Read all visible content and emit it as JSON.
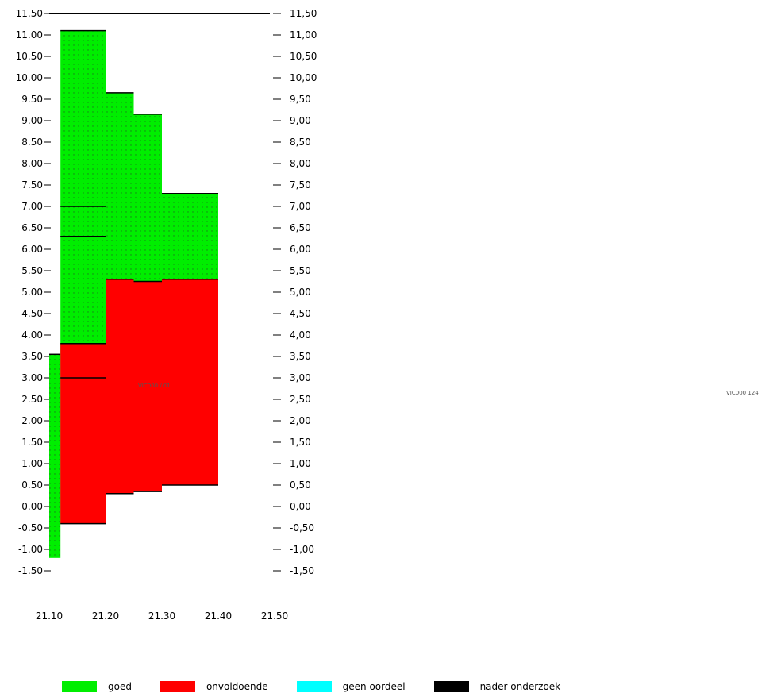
{
  "chart_data": {
    "type": "area",
    "title": "",
    "xlabel": "",
    "ylabel": "",
    "xlim": [
      21.06,
      21.5
    ],
    "ylim": [
      -1.5,
      11.5
    ],
    "x_ticks": [
      "21.10",
      "21.20",
      "21.30",
      "21.40",
      "21.50"
    ],
    "y_ticks_left": [
      "11.50",
      "11.00",
      "10.50",
      "10.00",
      "9.50",
      "9.00",
      "8.50",
      "8.00",
      "7.50",
      "7.00",
      "6.50",
      "6.00",
      "5.50",
      "5.00",
      "4.50",
      "4.00",
      "3.50",
      "3.00",
      "2.50",
      "2.00",
      "1.50",
      "1.00",
      "0.50",
      "0.00",
      "-0.50",
      "-1.00",
      "-1.50"
    ],
    "y_ticks_right": [
      "11,50",
      "11,00",
      "10,50",
      "10,00",
      "9,50",
      "9,00",
      "8,50",
      "8,00",
      "7,50",
      "7,00",
      "6,50",
      "6,00",
      "5,50",
      "5,00",
      "4,50",
      "4,00",
      "3,50",
      "3,00",
      "2,50",
      "2,00",
      "1,50",
      "1,00",
      "0,50",
      "0,00",
      "-0,50",
      "-1,00",
      "-1,50"
    ],
    "center_label": "VIC000 / 01",
    "side_label": "VIC000 124",
    "segments": [
      {
        "x0": 21.1,
        "x1": 21.12,
        "bottom": -1.2,
        "red_bottom": null,
        "red_top": null,
        "top": 3.55,
        "lines": []
      },
      {
        "x0": 21.12,
        "x1": 21.2,
        "bottom": -0.4,
        "red_bottom": -0.4,
        "red_top": 3.8,
        "top": 11.1,
        "lines": [
          3.0,
          6.3,
          7.0
        ]
      },
      {
        "x0": 21.2,
        "x1": 21.25,
        "bottom": 0.3,
        "red_bottom": 0.3,
        "red_top": 5.3,
        "top": 9.65,
        "lines": []
      },
      {
        "x0": 21.25,
        "x1": 21.3,
        "bottom": 0.35,
        "red_bottom": 0.35,
        "red_top": 5.25,
        "top": 9.15,
        "lines": []
      },
      {
        "x0": 21.3,
        "x1": 21.4,
        "bottom": 0.5,
        "red_bottom": 0.5,
        "red_top": 5.3,
        "top": 7.3,
        "lines": []
      }
    ],
    "legend": [
      {
        "name": "goed",
        "color": "#00ee00"
      },
      {
        "name": "onvoldoende",
        "color": "#ff0000"
      },
      {
        "name": "geen oordeel",
        "color": "#00ffff"
      },
      {
        "name": "nader onderzoek",
        "color": "#000000"
      }
    ],
    "colors": {
      "good": "#00ee00",
      "bad": "#ff0000",
      "line": "#000000",
      "dot": "#1a7a1a"
    }
  }
}
